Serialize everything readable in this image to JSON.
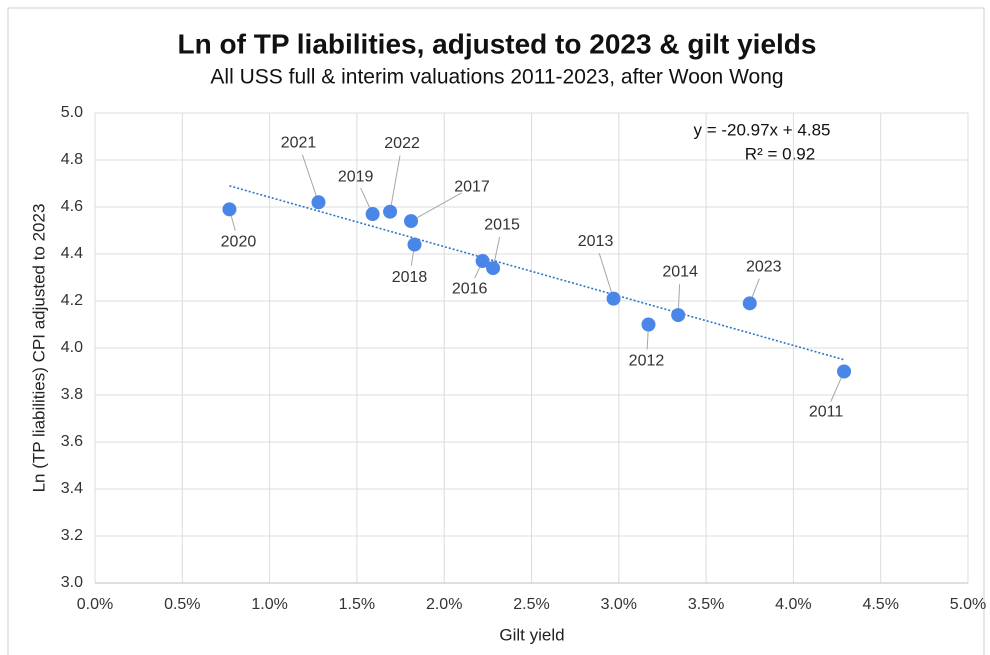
{
  "chart_data": {
    "type": "scatter",
    "title": "Ln of TP liabilities, adjusted to 2023 & gilt yields",
    "subtitle": "All USS full & interim valuations 2011-2023, after Woon Wong",
    "x_label": "Gilt yield",
    "y_label": "Ln (TP liabilities) CPI adjusted to 2023",
    "xlim": [
      0,
      5
    ],
    "xticks": [
      {
        "value": 0,
        "label": "0.0%"
      },
      {
        "value": 0.5,
        "label": "0.5%"
      },
      {
        "value": 1,
        "label": "1.0%"
      },
      {
        "value": 1.5,
        "label": "1.5%"
      },
      {
        "value": 2,
        "label": "2.0%"
      },
      {
        "value": 2.5,
        "label": "2.5%"
      },
      {
        "value": 3,
        "label": "3.0%"
      },
      {
        "value": 3.5,
        "label": "3.5%"
      },
      {
        "value": 4,
        "label": "4.0%"
      },
      {
        "value": 4.5,
        "label": "4.5%"
      },
      {
        "value": 5,
        "label": "5.0%"
      }
    ],
    "ylim": [
      3,
      5
    ],
    "yticks": [
      {
        "value": 3,
        "label": "3.0"
      },
      {
        "value": 3.2,
        "label": "3.2"
      },
      {
        "value": 3.4,
        "label": "3.4"
      },
      {
        "value": 3.6,
        "label": "3.6"
      },
      {
        "value": 3.8,
        "label": "3.8"
      },
      {
        "value": 4,
        "label": "4.0"
      },
      {
        "value": 4.2,
        "label": "4.2"
      },
      {
        "value": 4.4,
        "label": "4.4"
      },
      {
        "value": 4.6,
        "label": "4.6"
      },
      {
        "value": 4.8,
        "label": "4.8"
      },
      {
        "value": 5,
        "label": "5.0"
      }
    ],
    "grid": true,
    "series": [
      {
        "color": "#4a86e8",
        "labels": [
          "2020",
          "2021",
          "2019",
          "2022",
          "2017",
          "2018",
          "2016",
          "2015",
          "2013",
          "2012",
          "2014",
          "2023",
          "2011"
        ],
        "x": [
          0.77,
          1.28,
          1.59,
          1.69,
          1.81,
          1.83,
          2.22,
          2.28,
          2.97,
          3.17,
          3.34,
          3.75,
          4.29
        ],
        "values": [
          4.59,
          4.62,
          4.57,
          4.58,
          4.54,
          4.44,
          4.37,
          4.34,
          4.21,
          4.1,
          4.14,
          4.19,
          3.9
        ]
      }
    ],
    "trendline": {
      "color": "#2f75c6",
      "x": [
        0.77,
        4.29
      ],
      "values": [
        4.69,
        3.95
      ],
      "equation": "y = -20.97x + 4.85",
      "r2": "R² = 0.92"
    }
  }
}
